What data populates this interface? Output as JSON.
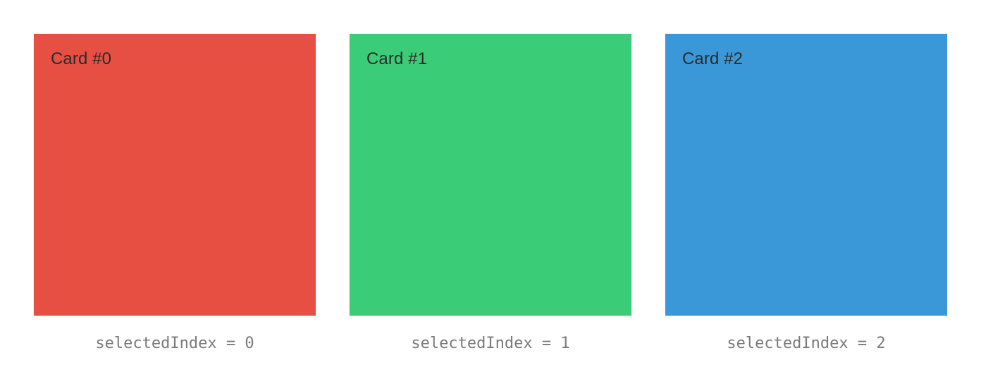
{
  "cards": [
    {
      "title": "Card #0",
      "caption": "selectedIndex = 0",
      "color": "#e64f42"
    },
    {
      "title": "Card #1",
      "caption": "selectedIndex = 1",
      "color": "#3bcc77"
    },
    {
      "title": "Card #2",
      "caption": "selectedIndex = 2",
      "color": "#3b98d8"
    }
  ]
}
